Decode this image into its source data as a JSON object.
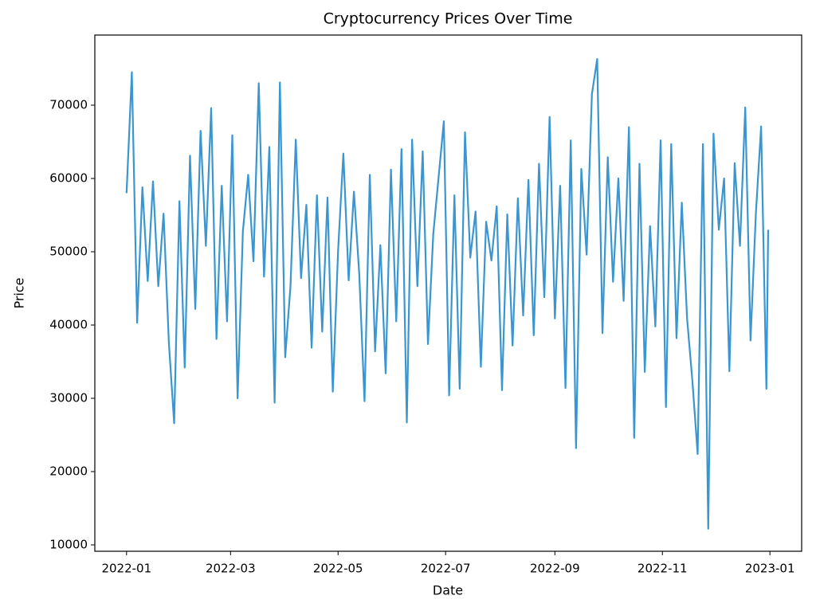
{
  "chart_data": {
    "type": "line",
    "title": "Cryptocurrency Prices Over Time",
    "xlabel": "Date",
    "ylabel": "Price",
    "x": [
      0,
      3,
      6,
      9,
      12,
      15,
      18,
      21,
      24,
      27,
      30,
      33,
      36,
      39,
      42,
      45,
      48,
      51,
      54,
      57,
      60,
      63,
      66,
      69,
      72,
      75,
      78,
      81,
      84,
      87,
      90,
      93,
      96,
      99,
      102,
      105,
      108,
      111,
      114,
      117,
      120,
      123,
      126,
      129,
      132,
      135,
      138,
      141,
      144,
      147,
      150,
      153,
      156,
      159,
      162,
      165,
      168,
      171,
      174,
      177,
      180,
      183,
      186,
      189,
      192,
      195,
      198,
      201,
      204,
      207,
      210,
      213,
      216,
      219,
      222,
      225,
      228,
      231,
      234,
      237,
      240,
      243,
      246,
      249,
      252,
      255,
      258,
      261,
      264,
      267,
      270,
      273,
      276,
      279,
      282,
      285,
      288,
      291,
      294,
      297,
      300,
      303,
      306,
      309,
      312,
      315,
      318,
      321,
      324,
      327,
      330,
      333,
      336,
      339,
      342,
      345,
      348,
      351,
      354,
      357,
      360,
      363,
      364
    ],
    "series": [
      {
        "name": "Price",
        "color": "#3a96d0",
        "values": [
          58000,
          74500,
          40300,
          58800,
          46000,
          59600,
          45300,
          55200,
          37600,
          26600,
          56900,
          34200,
          63100,
          42200,
          66500,
          50800,
          69600,
          38100,
          59000,
          40500,
          65900,
          30000,
          52800,
          60500,
          48700,
          73000,
          46600,
          64300,
          29400,
          73100,
          35600,
          45300,
          65300,
          46400,
          56400,
          36900,
          57700,
          39100,
          57400,
          30900,
          50100,
          63400,
          46100,
          58200,
          47000,
          29600,
          60500,
          36400,
          50900,
          33400,
          61200,
          40500,
          64000,
          26700,
          65300,
          45300,
          63700,
          37400,
          52400,
          60100,
          67800,
          30400,
          57700,
          31300,
          66300,
          49200,
          55500,
          34300,
          54100,
          48800,
          56200,
          31100,
          55100,
          37200,
          57300,
          41300,
          59800,
          38600,
          62000,
          43800,
          68400,
          40900,
          59000,
          31400,
          65200,
          23200,
          61300,
          49600,
          71500,
          76300,
          38900,
          62900,
          45900,
          60000,
          43300,
          67000,
          24600,
          62000,
          33600,
          53500,
          39800,
          65200,
          28800,
          64700,
          38200,
          56700,
          40900,
          32400,
          22400,
          64700,
          12200,
          66100,
          53000,
          60000,
          33700,
          62100,
          50800,
          69700,
          37900,
          55100,
          67100,
          31300,
          53000
        ]
      }
    ],
    "xlim": [
      -18,
      383
    ],
    "xticks": [
      {
        "value": 0,
        "label": "2022-01"
      },
      {
        "value": 59,
        "label": "2022-03"
      },
      {
        "value": 120,
        "label": "2022-05"
      },
      {
        "value": 181,
        "label": "2022-07"
      },
      {
        "value": 243,
        "label": "2022-09"
      },
      {
        "value": 304,
        "label": "2022-11"
      },
      {
        "value": 365,
        "label": "2023-01"
      }
    ],
    "ylim": [
      9130,
      79570
    ],
    "yticks": [
      10000,
      20000,
      30000,
      40000,
      50000,
      60000,
      70000
    ],
    "grid": false
  }
}
